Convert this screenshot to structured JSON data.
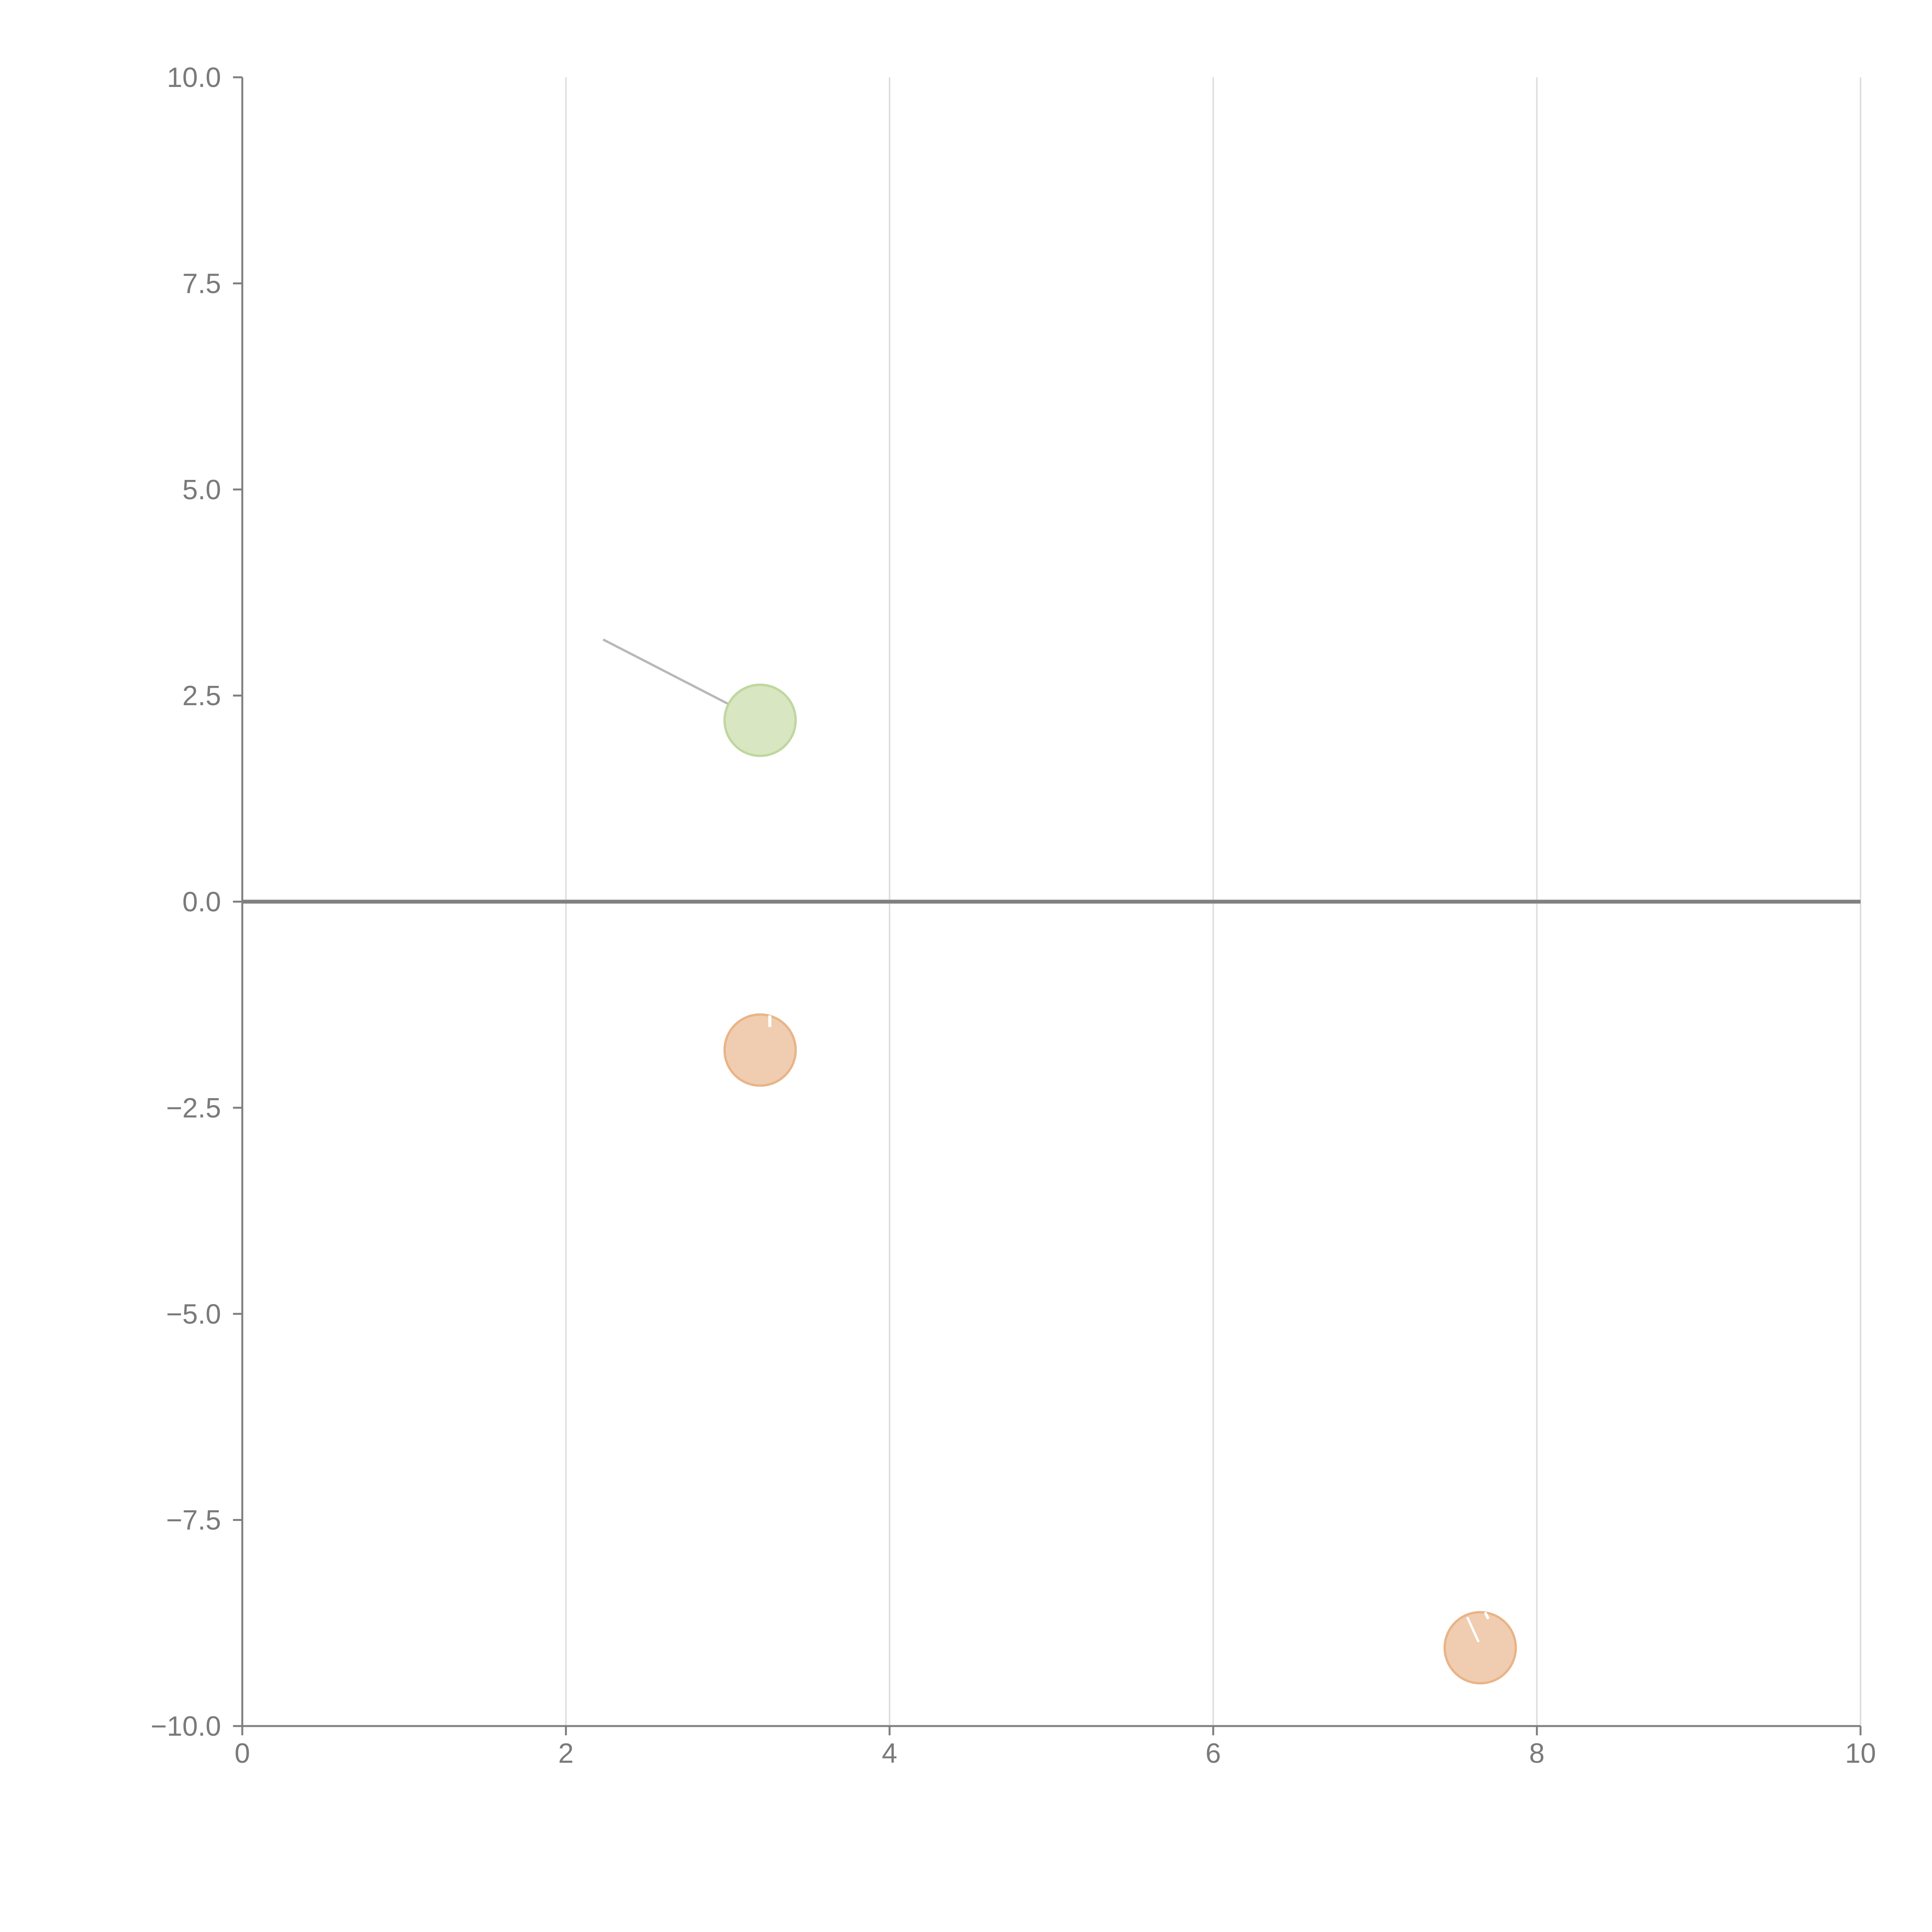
{
  "chart_data": {
    "type": "scatter",
    "title": "",
    "xlabel": "",
    "ylabel": "",
    "xlim": [
      0,
      10
    ],
    "ylim": [
      -10,
      10
    ],
    "x_ticks": [
      0,
      2,
      4,
      6,
      8,
      10
    ],
    "y_ticks": [
      -10,
      -7.5,
      -5,
      -2.5,
      0,
      2.5,
      5,
      7.5,
      10
    ],
    "x_tick_labels": [
      "0",
      "2",
      "4",
      "6",
      "8",
      "10"
    ],
    "y_tick_labels": [
      "−10.0",
      "−7.5",
      "−5.0",
      "−2.5",
      "0.0",
      "2.5",
      "5.0",
      "7.5",
      "10.0"
    ],
    "grid": {
      "vertical": true,
      "horizontal": false
    },
    "reference_line_y": 0,
    "points": [
      {
        "x": 3.2,
        "y": 2.2,
        "color": "#d8e6c2",
        "edge": "#bfd79f"
      },
      {
        "x": 3.2,
        "y": -1.8,
        "color": "#f0cdb0",
        "edge": "#e9b487"
      },
      {
        "x": 7.65,
        "y": -9.05,
        "color": "#f0cdb0",
        "edge": "#e9b487"
      }
    ],
    "annotations": [
      {
        "from": {
          "x": 2.23,
          "y": 3.18
        },
        "to": {
          "x": 3.17,
          "y": 2.23
        }
      }
    ],
    "colors": {
      "axis": "#7f7f7f",
      "grid": "#dedede",
      "tick_label": "#7a7a7a",
      "zero_line": "#808080",
      "annotation": "#b8b8b8"
    }
  }
}
